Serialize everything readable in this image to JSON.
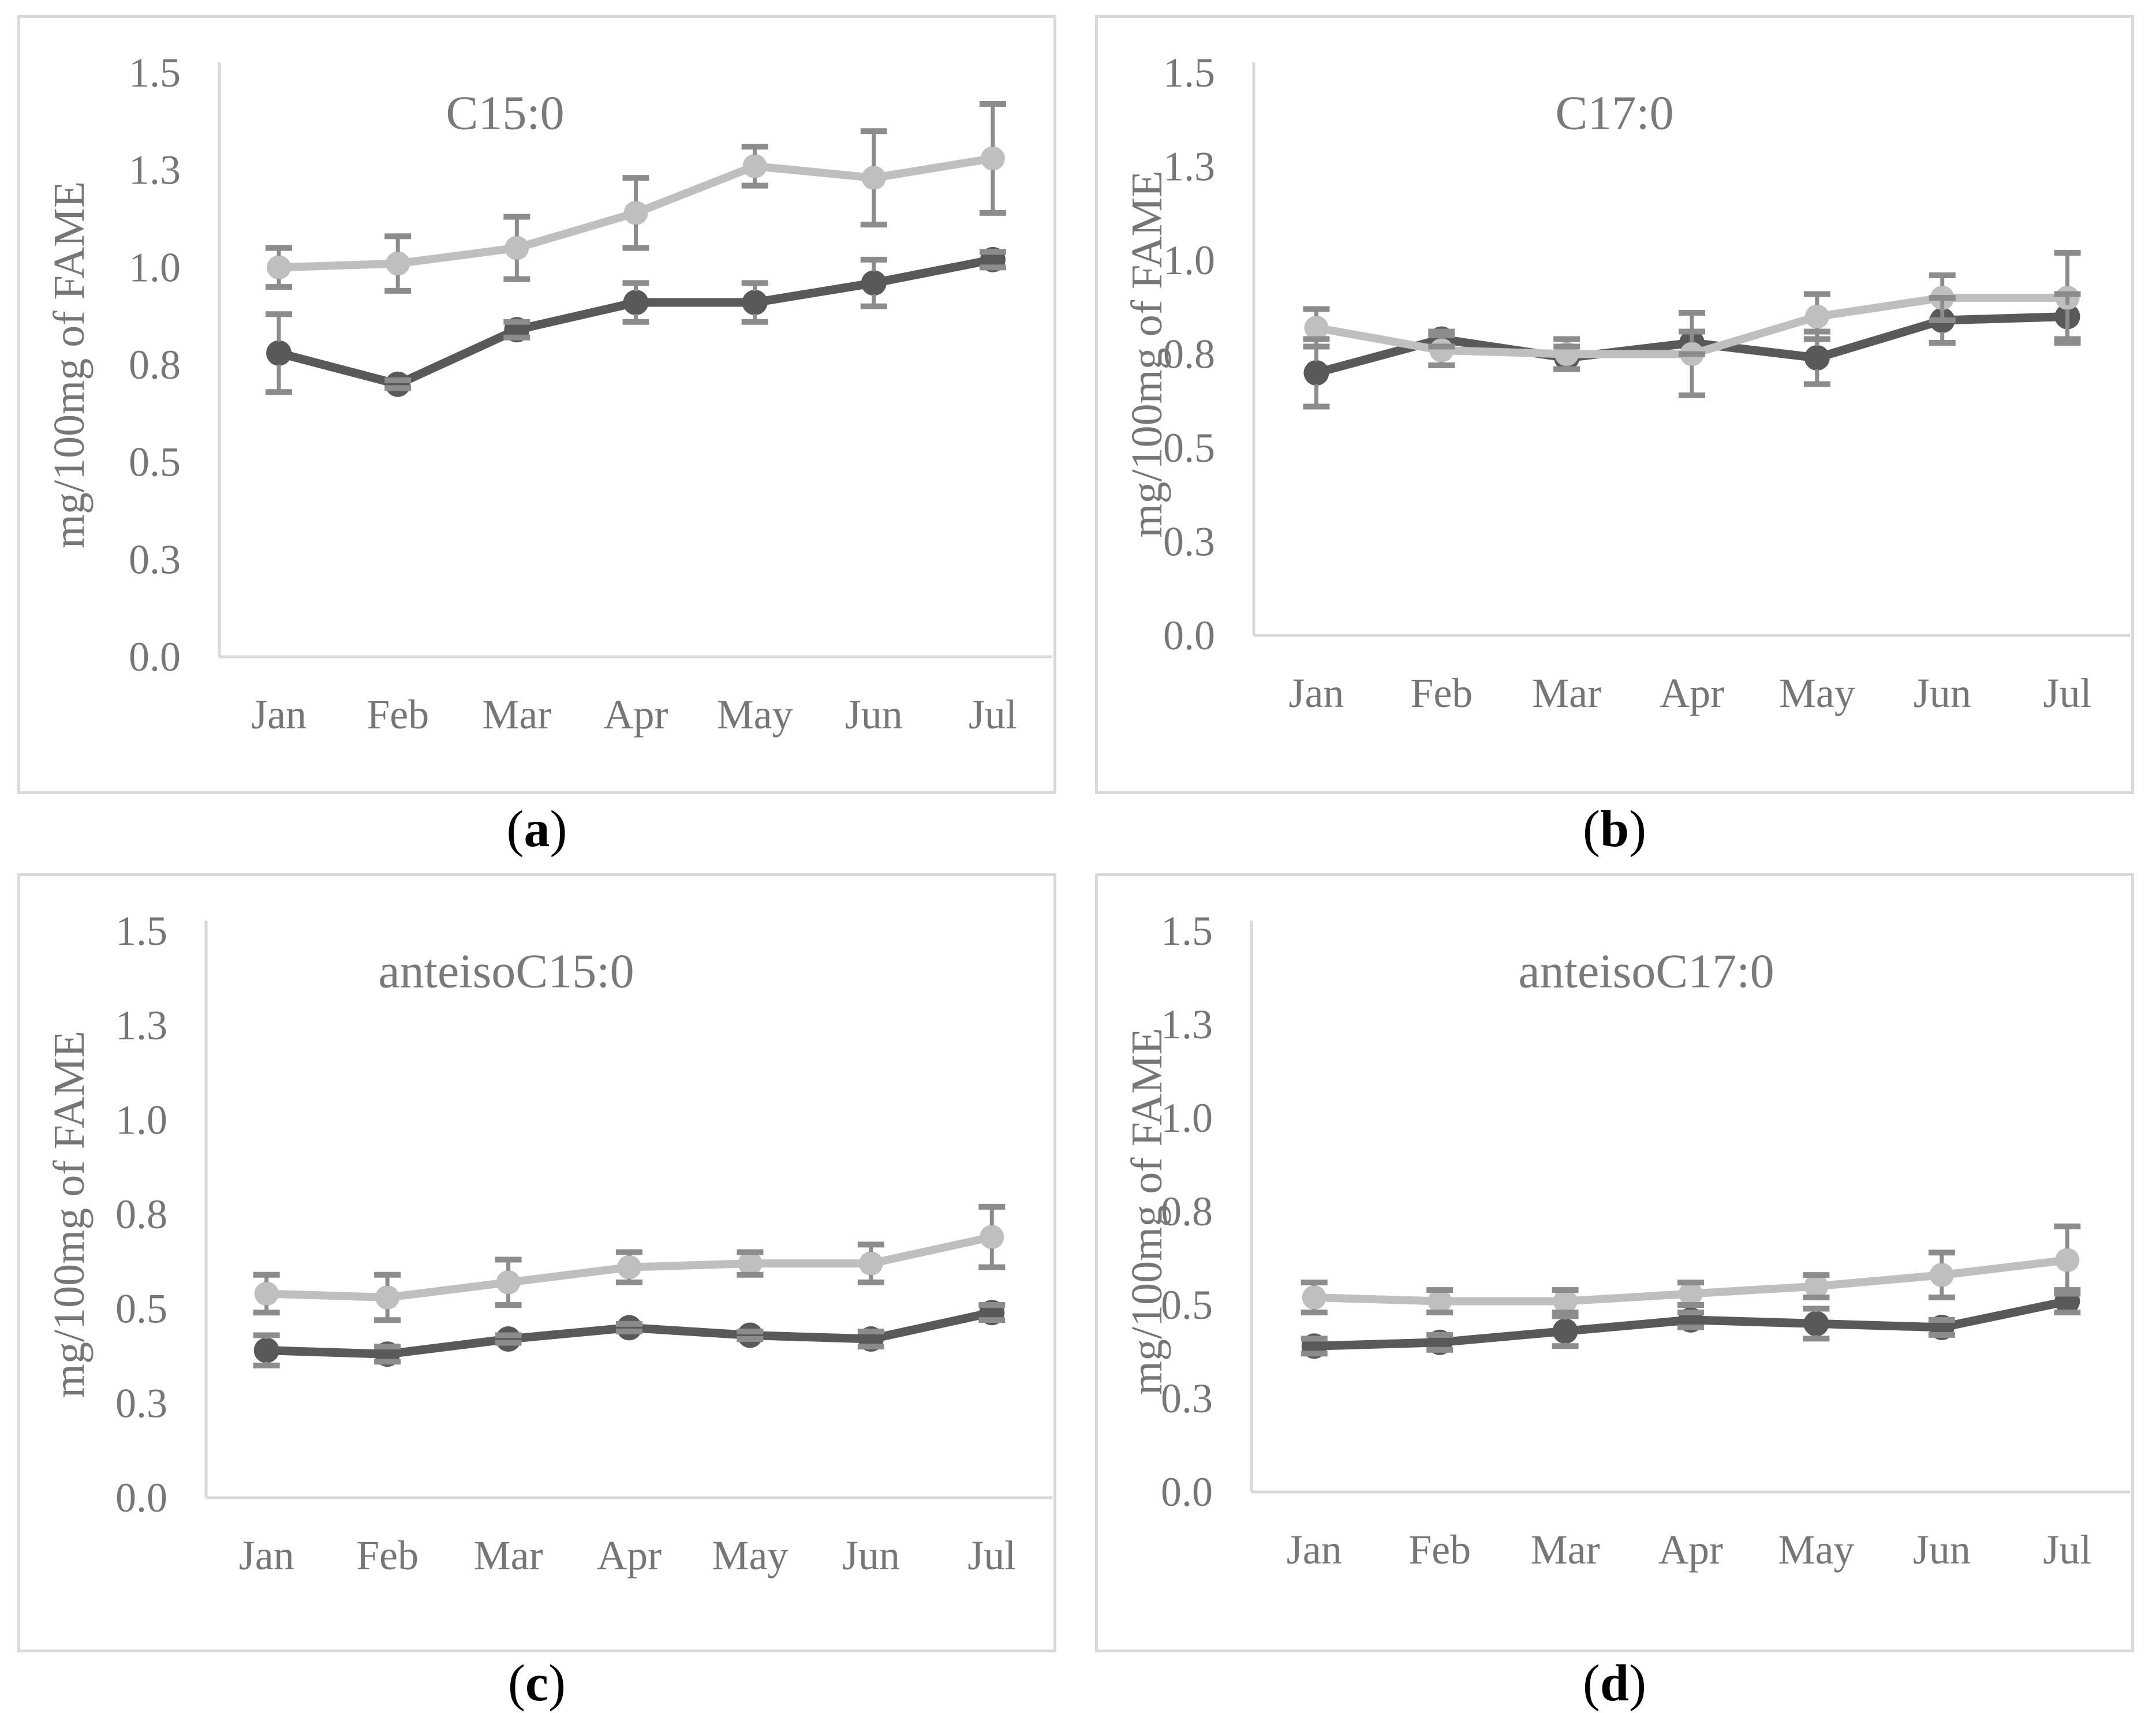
{
  "figure_type": "four-panel line chart figure with error bars",
  "strings": {
    "open_paren": "(",
    "close_paren": ")"
  },
  "styles": {
    "light_series_color": "#bfbfbf",
    "dark_series_color": "#595959",
    "error_bar_color": "#8c8c8c",
    "axis_line_color": "#d9d9d9",
    "panel_border_color": "#d9d9d9",
    "tick_label_color": "#767676",
    "title_color": "#7a7a7a",
    "caption_color": "#000000"
  },
  "chart_data": [
    {
      "type": "line",
      "panel": "a",
      "caption_letter": "a",
      "title": "C15:0",
      "ylabel": "mg/100mg of FAME",
      "xlabel": "",
      "categories": [
        "Jan",
        "Feb",
        "Mar",
        "Apr",
        "May",
        "Jun",
        "Jul"
      ],
      "ylim": [
        0,
        1.5
      ],
      "grid": false,
      "legend": "none",
      "y_ticks": [
        {
          "value": 0.0,
          "label": "0.0"
        },
        {
          "value": 0.25,
          "label": "0.3"
        },
        {
          "value": 0.5,
          "label": "0.5"
        },
        {
          "value": 0.75,
          "label": "0.8"
        },
        {
          "value": 1.0,
          "label": "1.0"
        },
        {
          "value": 1.25,
          "label": "1.3"
        },
        {
          "value": 1.5,
          "label": "1.5"
        }
      ],
      "series": [
        {
          "name": "dark-gray-series",
          "color": "#595959",
          "values": [
            0.78,
            0.7,
            0.84,
            0.91,
            0.91,
            0.96,
            1.02
          ],
          "error_bars": [
            0.1,
            0.01,
            0.02,
            0.05,
            0.05,
            0.06,
            0.02
          ]
        },
        {
          "name": "light-gray-series",
          "color": "#bfbfbf",
          "values": [
            1.0,
            1.01,
            1.05,
            1.14,
            1.26,
            1.23,
            1.28
          ],
          "error_bars": [
            0.05,
            0.07,
            0.08,
            0.09,
            0.05,
            0.12,
            0.14
          ]
        }
      ]
    },
    {
      "type": "line",
      "panel": "b",
      "caption_letter": "b",
      "title": "C17:0",
      "ylabel": "mg/100mg of FAME",
      "xlabel": "",
      "categories": [
        "Jan",
        "Feb",
        "Mar",
        "Apr",
        "May",
        "Jun",
        "Jul"
      ],
      "ylim": [
        0,
        1.5
      ],
      "grid": false,
      "legend": "none",
      "y_ticks": [
        {
          "value": 0.0,
          "label": "0.0"
        },
        {
          "value": 0.25,
          "label": "0.3"
        },
        {
          "value": 0.5,
          "label": "0.5"
        },
        {
          "value": 0.75,
          "label": "0.8"
        },
        {
          "value": 1.0,
          "label": "1.0"
        },
        {
          "value": 1.25,
          "label": "1.3"
        },
        {
          "value": 1.5,
          "label": "1.5"
        }
      ],
      "series": [
        {
          "name": "dark-gray-series",
          "color": "#595959",
          "values": [
            0.7,
            0.79,
            0.74,
            0.78,
            0.74,
            0.84,
            0.85
          ],
          "error_bars": [
            0.09,
            0.02,
            0.03,
            0.03,
            0.07,
            0.06,
            0.06
          ]
        },
        {
          "name": "light-gray-series",
          "color": "#bfbfbf",
          "values": [
            0.82,
            0.76,
            0.75,
            0.75,
            0.85,
            0.9,
            0.9
          ],
          "error_bars": [
            0.05,
            0.04,
            0.04,
            0.11,
            0.06,
            0.06,
            0.12
          ]
        }
      ]
    },
    {
      "type": "line",
      "panel": "c",
      "caption_letter": "c",
      "title": "anteisoC15:0",
      "ylabel": "mg/100mg of FAME",
      "xlabel": "",
      "categories": [
        "Jan",
        "Feb",
        "Mar",
        "Apr",
        "May",
        "Jun",
        "Jul"
      ],
      "ylim": [
        0,
        1.5
      ],
      "grid": false,
      "legend": "none",
      "y_ticks": [
        {
          "value": 0.0,
          "label": "0.0"
        },
        {
          "value": 0.25,
          "label": "0.3"
        },
        {
          "value": 0.5,
          "label": "0.5"
        },
        {
          "value": 0.75,
          "label": "0.8"
        },
        {
          "value": 1.0,
          "label": "1.0"
        },
        {
          "value": 1.25,
          "label": "1.3"
        },
        {
          "value": 1.5,
          "label": "1.5"
        }
      ],
      "series": [
        {
          "name": "dark-gray-series",
          "color": "#595959",
          "values": [
            0.39,
            0.38,
            0.42,
            0.45,
            0.43,
            0.42,
            0.49
          ],
          "error_bars": [
            0.04,
            0.02,
            0.01,
            0.01,
            0.01,
            0.02,
            0.02
          ]
        },
        {
          "name": "light-gray-series",
          "color": "#bfbfbf",
          "values": [
            0.54,
            0.53,
            0.57,
            0.61,
            0.62,
            0.62,
            0.69
          ],
          "error_bars": [
            0.05,
            0.06,
            0.06,
            0.04,
            0.03,
            0.05,
            0.08
          ]
        }
      ]
    },
    {
      "type": "line",
      "panel": "d",
      "caption_letter": "d",
      "title": "anteisoC17:0",
      "ylabel": "mg/100mg of FAME",
      "xlabel": "",
      "categories": [
        "Jan",
        "Feb",
        "Mar",
        "Apr",
        "May",
        "Jun",
        "Jul"
      ],
      "ylim": [
        0,
        1.5
      ],
      "grid": false,
      "legend": "none",
      "y_ticks": [
        {
          "value": 0.0,
          "label": "0.0"
        },
        {
          "value": 0.25,
          "label": "0.3"
        },
        {
          "value": 0.5,
          "label": "0.5"
        },
        {
          "value": 0.75,
          "label": "0.8"
        },
        {
          "value": 1.0,
          "label": "1.0"
        },
        {
          "value": 1.25,
          "label": "1.3"
        },
        {
          "value": 1.5,
          "label": "1.5"
        }
      ],
      "series": [
        {
          "name": "dark-gray-series",
          "color": "#595959",
          "values": [
            0.39,
            0.4,
            0.43,
            0.46,
            0.45,
            0.44,
            0.51
          ],
          "error_bars": [
            0.02,
            0.02,
            0.04,
            0.02,
            0.04,
            0.02,
            0.03
          ]
        },
        {
          "name": "light-gray-series",
          "color": "#bfbfbf",
          "values": [
            0.52,
            0.51,
            0.51,
            0.53,
            0.55,
            0.58,
            0.62
          ],
          "error_bars": [
            0.04,
            0.03,
            0.03,
            0.03,
            0.03,
            0.06,
            0.09
          ]
        }
      ]
    }
  ]
}
